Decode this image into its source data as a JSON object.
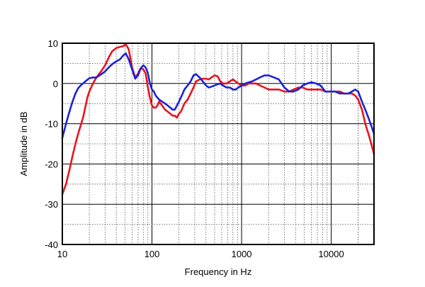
{
  "chart_data": {
    "type": "line",
    "title": "",
    "xlabel": "Frequency in Hz",
    "ylabel": "Amplitude in dB",
    "xscale": "log",
    "xlim": [
      10,
      30000
    ],
    "ylim": [
      -40,
      10
    ],
    "grid": true,
    "legend": "none",
    "x_tick_labels": [
      {
        "value": 10,
        "label": "10"
      },
      {
        "value": 100,
        "label": "100"
      },
      {
        "value": 1000,
        "label": "1000"
      },
      {
        "value": 10000,
        "label": "10000"
      }
    ],
    "y_tick_labels": [
      {
        "value": 10,
        "label": "10"
      },
      {
        "value": 0,
        "label": "0"
      },
      {
        "value": -10,
        "label": "-10"
      },
      {
        "value": -20,
        "label": "-20"
      },
      {
        "value": -30,
        "label": "-30"
      },
      {
        "value": -40,
        "label": "-40"
      }
    ],
    "series": [
      {
        "color": "#e8141b",
        "points": [
          [
            10,
            -27.5
          ],
          [
            11,
            -25
          ],
          [
            12,
            -21.5
          ],
          [
            13,
            -18
          ],
          [
            14,
            -15
          ],
          [
            15,
            -12.5
          ],
          [
            16,
            -10.5
          ],
          [
            17,
            -8.5
          ],
          [
            18,
            -6
          ],
          [
            19,
            -3.5
          ],
          [
            20,
            -2
          ],
          [
            22,
            0
          ],
          [
            24,
            1.5
          ],
          [
            27,
            3
          ],
          [
            30,
            4.5
          ],
          [
            33,
            6.5
          ],
          [
            36,
            8
          ],
          [
            40,
            8.8
          ],
          [
            44,
            9.1
          ],
          [
            48,
            9.3
          ],
          [
            51,
            9.8
          ],
          [
            55,
            8.5
          ],
          [
            60,
            4
          ],
          [
            65,
            1.5
          ],
          [
            70,
            2.5
          ],
          [
            75,
            3.8
          ],
          [
            80,
            3.5
          ],
          [
            85,
            2.5
          ],
          [
            90,
            -1
          ],
          [
            95,
            -3.5
          ],
          [
            100,
            -5.5
          ],
          [
            105,
            -6
          ],
          [
            110,
            -6
          ],
          [
            115,
            -5.5
          ],
          [
            120,
            -4.5
          ],
          [
            130,
            -5.5
          ],
          [
            140,
            -6.5
          ],
          [
            150,
            -7
          ],
          [
            160,
            -7.5
          ],
          [
            170,
            -8
          ],
          [
            180,
            -8
          ],
          [
            190,
            -8.5
          ],
          [
            200,
            -7.5
          ],
          [
            210,
            -7
          ],
          [
            220,
            -6
          ],
          [
            230,
            -5
          ],
          [
            250,
            -4
          ],
          [
            270,
            -2.5
          ],
          [
            290,
            -1
          ],
          [
            310,
            0.5
          ],
          [
            340,
            1
          ],
          [
            370,
            1.2
          ],
          [
            400,
            1.2
          ],
          [
            430,
            1
          ],
          [
            460,
            1.5
          ],
          [
            500,
            2
          ],
          [
            540,
            1.8
          ],
          [
            580,
            0.5
          ],
          [
            620,
            0
          ],
          [
            680,
            0
          ],
          [
            740,
            0.5
          ],
          [
            800,
            1
          ],
          [
            860,
            0.5
          ],
          [
            920,
            0
          ],
          [
            1000,
            -0.5
          ],
          [
            1100,
            -0.5
          ],
          [
            1200,
            0
          ],
          [
            1300,
            0
          ],
          [
            1450,
            0
          ],
          [
            1600,
            -0.5
          ],
          [
            1800,
            -1
          ],
          [
            2000,
            -1.5
          ],
          [
            2300,
            -1.5
          ],
          [
            2600,
            -1.5
          ],
          [
            3000,
            -2
          ],
          [
            3400,
            -2
          ],
          [
            3800,
            -1.5
          ],
          [
            4300,
            -1
          ],
          [
            4800,
            -1
          ],
          [
            5400,
            -1.5
          ],
          [
            6000,
            -1.5
          ],
          [
            6800,
            -1.5
          ],
          [
            7600,
            -1.5
          ],
          [
            8600,
            -2
          ],
          [
            9700,
            -2
          ],
          [
            11000,
            -2
          ],
          [
            12500,
            -2
          ],
          [
            14000,
            -2.5
          ],
          [
            15500,
            -2.5
          ],
          [
            17000,
            -2.5
          ],
          [
            18500,
            -3
          ],
          [
            20000,
            -4
          ],
          [
            22000,
            -6.5
          ],
          [
            24000,
            -10
          ],
          [
            26000,
            -12.5
          ],
          [
            28000,
            -15
          ],
          [
            30000,
            -17.5
          ]
        ]
      },
      {
        "color": "#1c23d6",
        "points": [
          [
            10,
            -13.5
          ],
          [
            11,
            -10
          ],
          [
            12,
            -7
          ],
          [
            13,
            -4.5
          ],
          [
            14,
            -2.5
          ],
          [
            15,
            -1.2
          ],
          [
            16,
            -0.5
          ],
          [
            17,
            0
          ],
          [
            18,
            0.5
          ],
          [
            20,
            1.3
          ],
          [
            22,
            1.5
          ],
          [
            24,
            1.5
          ],
          [
            26,
            2
          ],
          [
            28,
            2.5
          ],
          [
            30,
            3
          ],
          [
            33,
            4
          ],
          [
            36,
            4.8
          ],
          [
            40,
            5.5
          ],
          [
            44,
            6
          ],
          [
            48,
            7
          ],
          [
            51,
            7.5
          ],
          [
            55,
            6
          ],
          [
            60,
            3.5
          ],
          [
            65,
            1.2
          ],
          [
            70,
            2
          ],
          [
            75,
            3.8
          ],
          [
            80,
            4.5
          ],
          [
            85,
            4
          ],
          [
            90,
            2.5
          ],
          [
            95,
            0
          ],
          [
            100,
            -1.5
          ],
          [
            105,
            -2
          ],
          [
            110,
            -3
          ],
          [
            115,
            -3.5
          ],
          [
            120,
            -4
          ],
          [
            130,
            -4.5
          ],
          [
            140,
            -5
          ],
          [
            150,
            -5.5
          ],
          [
            160,
            -6
          ],
          [
            170,
            -6.5
          ],
          [
            180,
            -6.5
          ],
          [
            190,
            -5.5
          ],
          [
            200,
            -4.5
          ],
          [
            210,
            -3.5
          ],
          [
            220,
            -2.5
          ],
          [
            230,
            -1.5
          ],
          [
            250,
            -0.5
          ],
          [
            270,
            0.5
          ],
          [
            290,
            2
          ],
          [
            310,
            2.3
          ],
          [
            340,
            1.5
          ],
          [
            370,
            0.5
          ],
          [
            400,
            -0.5
          ],
          [
            430,
            -1
          ],
          [
            460,
            -0.8
          ],
          [
            500,
            -0.5
          ],
          [
            540,
            -0.2
          ],
          [
            580,
            0
          ],
          [
            620,
            -0.5
          ],
          [
            680,
            -1
          ],
          [
            740,
            -1
          ],
          [
            800,
            -1.5
          ],
          [
            860,
            -1.5
          ],
          [
            920,
            -1
          ],
          [
            1000,
            -0.5
          ],
          [
            1100,
            0
          ],
          [
            1200,
            0.3
          ],
          [
            1300,
            0.5
          ],
          [
            1450,
            1
          ],
          [
            1600,
            1.5
          ],
          [
            1800,
            2
          ],
          [
            2000,
            2
          ],
          [
            2300,
            1.5
          ],
          [
            2600,
            1
          ],
          [
            3000,
            -1
          ],
          [
            3400,
            -2
          ],
          [
            3800,
            -2
          ],
          [
            4300,
            -1.5
          ],
          [
            4800,
            -0.5
          ],
          [
            5400,
            0
          ],
          [
            6000,
            0.3
          ],
          [
            6800,
            0
          ],
          [
            7600,
            -0.5
          ],
          [
            8600,
            -2
          ],
          [
            9700,
            -2
          ],
          [
            11000,
            -2
          ],
          [
            12500,
            -2.5
          ],
          [
            14000,
            -2.5
          ],
          [
            15500,
            -2.5
          ],
          [
            17000,
            -2
          ],
          [
            18500,
            -1.5
          ],
          [
            20000,
            -2
          ],
          [
            22000,
            -4.5
          ],
          [
            24000,
            -6.5
          ],
          [
            26000,
            -8.5
          ],
          [
            28000,
            -10.5
          ],
          [
            30000,
            -12.5
          ]
        ]
      }
    ]
  }
}
